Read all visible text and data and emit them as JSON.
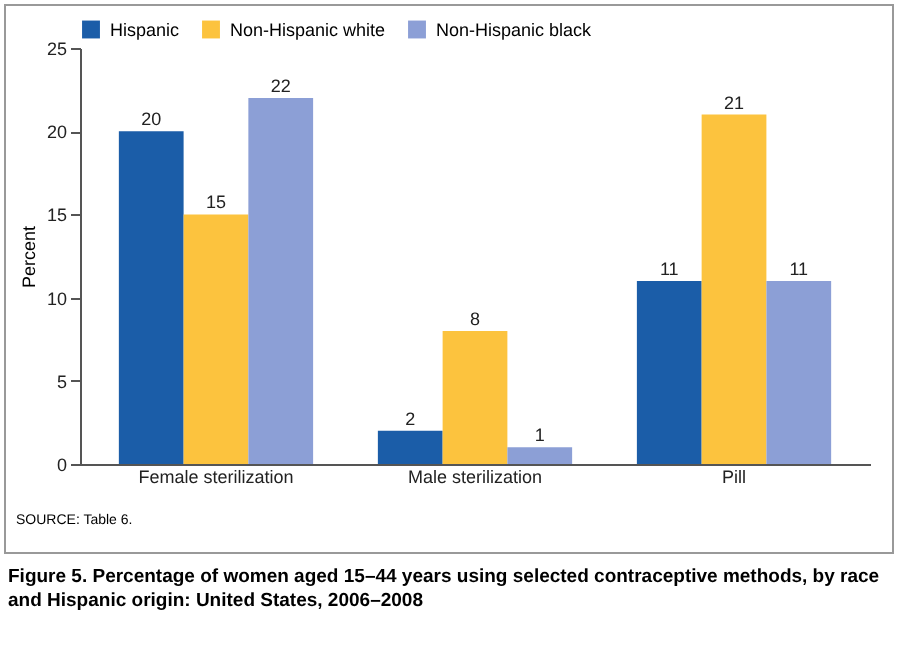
{
  "chart_data": {
    "type": "bar",
    "title": "Figure 5. Percentage of women aged 15–44 years using selected contraceptive methods, by race and Hispanic origin: United States, 2006–2008",
    "ylabel": "Percent",
    "annotations": [
      "SOURCE: Table 6."
    ],
    "categories": [
      "Female sterilization",
      "Male sterilization",
      "Pill"
    ],
    "series": [
      {
        "name": "Hispanic",
        "color": "#1b5da8",
        "values": [
          20,
          2,
          11
        ]
      },
      {
        "name": "Non-Hispanic white",
        "color": "#fcc33e",
        "values": [
          15,
          8,
          21
        ]
      },
      {
        "name": "Non-Hispanic black",
        "color": "#8c9fd6",
        "values": [
          22,
          1,
          11
        ]
      }
    ],
    "ylim": [
      0,
      25
    ],
    "yticks": [
      0,
      5,
      10,
      15,
      20,
      25
    ],
    "grid": false,
    "legend": "top",
    "data_labels": true
  }
}
